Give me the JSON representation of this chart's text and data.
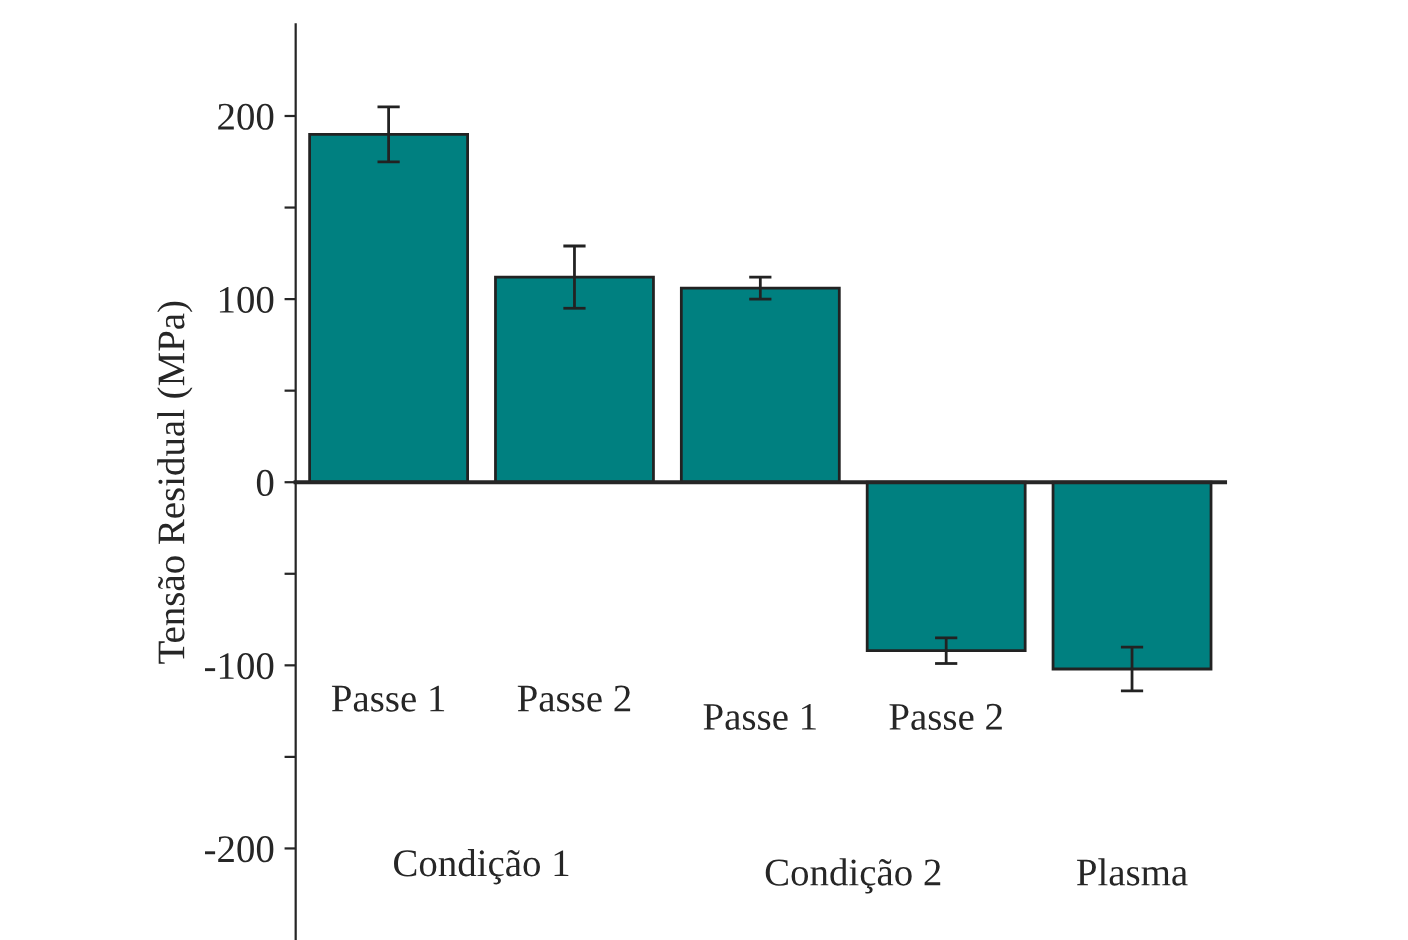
{
  "chart_data": {
    "type": "bar",
    "ylabel": "Tensão Residual (MPa)",
    "categories": [
      null,
      null,
      null,
      null,
      null
    ],
    "values": [
      190,
      112,
      106,
      -92,
      -102
    ],
    "errors": [
      15,
      17,
      6,
      7,
      12
    ],
    "color": "#008080",
    "ylim": [
      -250,
      250
    ],
    "yticks": [
      {
        "value": -200,
        "label": "-200"
      },
      {
        "value": -150,
        "label": null
      },
      {
        "value": -100,
        "label": "-100"
      },
      {
        "value": -50,
        "label": null
      },
      0,
      {
        "value": 50,
        "label": null
      },
      100,
      {
        "value": 150,
        "label": null
      },
      200
    ],
    "annotations": [
      "Passe 1",
      "Passe 2",
      "Passe 1",
      "Passe 2",
      "Condição 1",
      "Condição 2",
      "Plasma"
    ],
    "legend": false
  }
}
